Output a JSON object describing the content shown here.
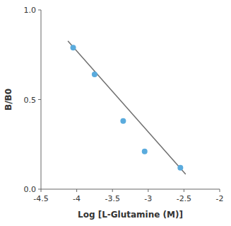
{
  "chart_data": {
    "type": "scatter",
    "xlabel": "Log [L-Glutamine (M)]",
    "ylabel": "B/B0",
    "series": [
      {
        "type": "scatter",
        "color": "#5aabdd",
        "x": [
          -4.05,
          -3.75,
          -3.35,
          -3.05,
          -2.55
        ],
        "values": [
          0.79,
          0.64,
          0.38,
          0.21,
          0.12
        ]
      },
      {
        "type": "line",
        "color": "#707070",
        "x": [
          -4.12,
          -2.48
        ],
        "values": [
          0.825,
          0.085
        ]
      }
    ],
    "xlim": [
      -4.5,
      -2.0
    ],
    "ylim": [
      0.0,
      1.0
    ],
    "xticks": [
      -4.5,
      -4,
      -3.5,
      -3,
      -2.5,
      -2
    ],
    "yticks": [
      {
        "value": 0,
        "label": "0.0"
      },
      0.5,
      {
        "value": 1,
        "label": "1.0"
      }
    ],
    "grid": false
  }
}
